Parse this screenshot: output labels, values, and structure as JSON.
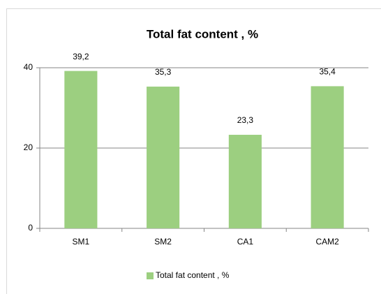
{
  "chart_data": {
    "type": "bar",
    "title": "Total fat content , %",
    "categories": [
      "SM1",
      "SM2",
      "CA1",
      "CAM2"
    ],
    "series": [
      {
        "name": "Total fat content , %",
        "color": "#9ccf80",
        "values": [
          39.2,
          35.3,
          23.3,
          35.4
        ],
        "value_labels": [
          "39,2",
          "35,3",
          "23,3",
          "35,4"
        ]
      }
    ],
    "ylim": [
      0,
      40
    ],
    "yticks": [
      0,
      20,
      40
    ],
    "grid": true,
    "legend": "bottom"
  }
}
